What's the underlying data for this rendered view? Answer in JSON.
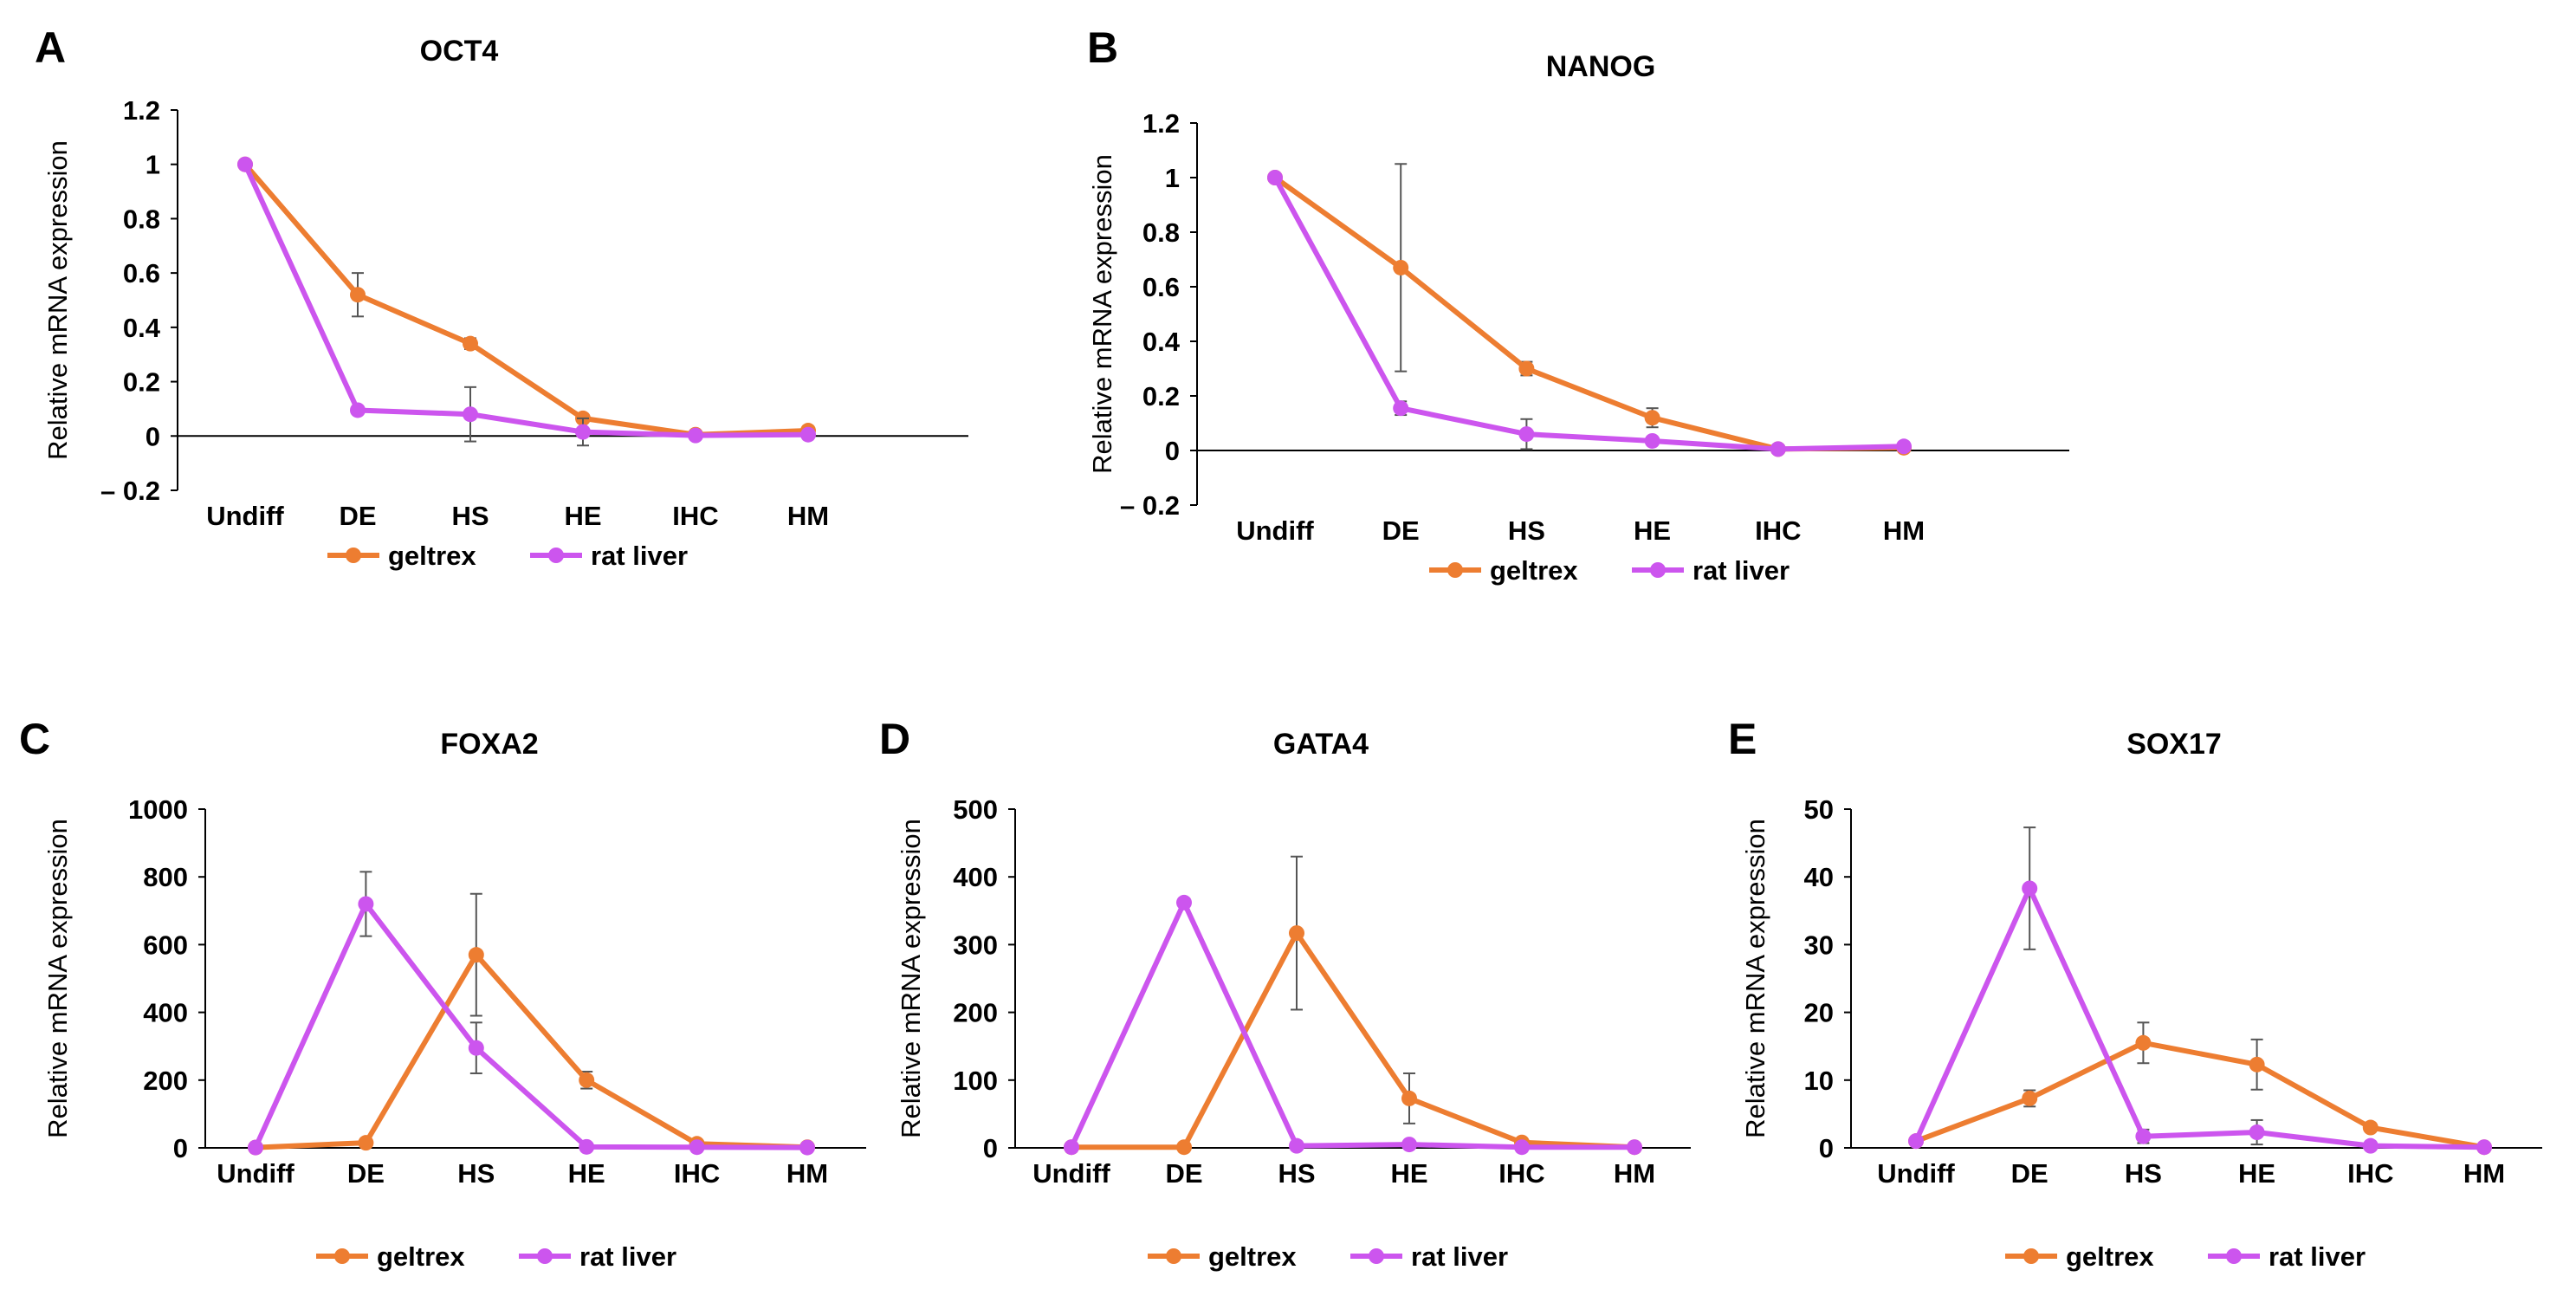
{
  "colors": {
    "geltrex": "#ed7d31",
    "rat_liver": "#cc55ee",
    "errorbar": "#555555",
    "axis": "#000000"
  },
  "chart_data": [
    {
      "panel": "A",
      "type": "line",
      "title": "OCT4",
      "xlabel": "",
      "ylabel": "Relative mRNA expression",
      "categories": [
        "Undiff",
        "DE",
        "HS",
        "HE",
        "IHC",
        "HM"
      ],
      "ylim": [
        -0.2,
        1.2
      ],
      "yticks": [
        -0.2,
        0,
        0.2,
        0.4,
        0.6,
        0.8,
        1,
        1.2
      ],
      "ytick_labels": [
        "– 0.2",
        "0",
        "0.2",
        "0.4",
        "0.6",
        "0.8",
        "1",
        "1.2"
      ],
      "legend": "bottom",
      "series": [
        {
          "name": "geltrex",
          "color": "#ed7d31",
          "values": [
            1,
            0.52,
            0.34,
            0.065,
            0.005,
            0.02
          ],
          "errors": [
            0,
            0.08,
            0.02,
            0.015,
            0,
            0
          ]
        },
        {
          "name": "rat liver",
          "color": "#cc55ee",
          "values": [
            1,
            0.095,
            0.08,
            0.015,
            0.002,
            0.005
          ],
          "errors": [
            0,
            0.01,
            0.1,
            0.05,
            0,
            0
          ]
        }
      ]
    },
    {
      "panel": "B",
      "type": "line",
      "title": "NANOG",
      "xlabel": "",
      "ylabel": "Relative mRNA expression",
      "categories": [
        "Undiff",
        "DE",
        "HS",
        "HE",
        "IHC",
        "HM"
      ],
      "ylim": [
        -0.2,
        1.2
      ],
      "yticks": [
        -0.2,
        0,
        0.2,
        0.4,
        0.6,
        0.8,
        1,
        1.2
      ],
      "ytick_labels": [
        "– 0.2",
        "0",
        "0.2",
        "0.4",
        "0.6",
        "0.8",
        "1",
        "1.2"
      ],
      "legend": "bottom",
      "series": [
        {
          "name": "geltrex",
          "color": "#ed7d31",
          "values": [
            1,
            0.67,
            0.3,
            0.12,
            0.005,
            0.01
          ],
          "errors": [
            0,
            0.38,
            0.025,
            0.035,
            0,
            0
          ]
        },
        {
          "name": "rat liver",
          "color": "#cc55ee",
          "values": [
            1,
            0.155,
            0.06,
            0.035,
            0.005,
            0.015
          ],
          "errors": [
            0,
            0.025,
            0.055,
            0.01,
            0,
            0
          ]
        }
      ]
    },
    {
      "panel": "C",
      "type": "line",
      "title": "FOXA2",
      "xlabel": "",
      "ylabel": "Relative mRNA expression",
      "categories": [
        "Undiff",
        "DE",
        "HS",
        "HE",
        "IHC",
        "HM"
      ],
      "ylim": [
        0,
        1000
      ],
      "yticks": [
        0,
        200,
        400,
        600,
        800,
        1000
      ],
      "ytick_labels": [
        "0",
        "200",
        "400",
        "600",
        "800",
        "1000"
      ],
      "legend": "bottom",
      "series": [
        {
          "name": "geltrex",
          "color": "#ed7d31",
          "values": [
            1,
            15,
            570,
            200,
            12,
            2
          ],
          "errors": [
            0,
            0,
            180,
            25,
            0,
            0
          ]
        },
        {
          "name": "rat liver",
          "color": "#cc55ee",
          "values": [
            1,
            720,
            295,
            3,
            2,
            1
          ],
          "errors": [
            0,
            95,
            75,
            0,
            0,
            0
          ]
        }
      ]
    },
    {
      "panel": "D",
      "type": "line",
      "title": "GATA4",
      "xlabel": "",
      "ylabel": "Relative mRNA expression",
      "categories": [
        "Undiff",
        "DE",
        "HS",
        "HE",
        "IHC",
        "HM"
      ],
      "ylim": [
        0,
        500
      ],
      "yticks": [
        0,
        100,
        200,
        300,
        400,
        500
      ],
      "ytick_labels": [
        "0",
        "100",
        "200",
        "300",
        "400",
        "500"
      ],
      "legend": "bottom",
      "series": [
        {
          "name": "geltrex",
          "color": "#ed7d31",
          "values": [
            1,
            1,
            317,
            73,
            8,
            1
          ],
          "errors": [
            0,
            0,
            113,
            37,
            0,
            0
          ]
        },
        {
          "name": "rat liver",
          "color": "#cc55ee",
          "values": [
            1,
            362,
            3,
            5,
            1,
            1
          ],
          "errors": [
            0,
            0,
            0,
            0,
            0,
            0
          ]
        }
      ]
    },
    {
      "panel": "E",
      "type": "line",
      "title": "SOX17",
      "xlabel": "",
      "ylabel": "Relative mRNA expression",
      "categories": [
        "Undiff",
        "DE",
        "HS",
        "HE",
        "IHC",
        "HM"
      ],
      "ylim": [
        0,
        50
      ],
      "yticks": [
        0,
        10,
        20,
        30,
        40,
        50
      ],
      "ytick_labels": [
        "0",
        "10",
        "20",
        "30",
        "40",
        "50"
      ],
      "legend": "bottom",
      "series": [
        {
          "name": "geltrex",
          "color": "#ed7d31",
          "values": [
            1,
            7.3,
            15.5,
            12.3,
            3,
            0.1
          ],
          "errors": [
            0,
            1.2,
            3,
            3.7,
            0,
            0
          ]
        },
        {
          "name": "rat liver",
          "color": "#cc55ee",
          "values": [
            1,
            38.3,
            1.7,
            2.3,
            0.3,
            0.1
          ],
          "errors": [
            0,
            9,
            1,
            1.8,
            0,
            0
          ]
        }
      ]
    }
  ]
}
